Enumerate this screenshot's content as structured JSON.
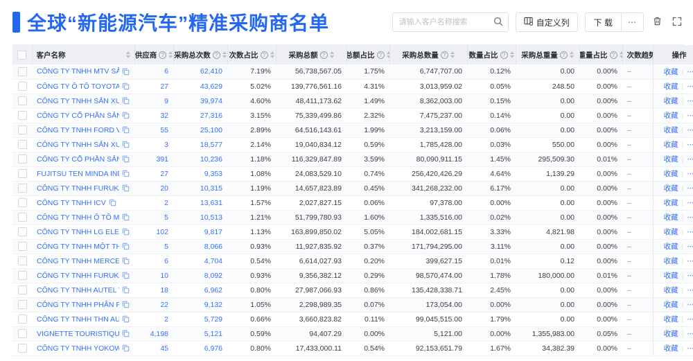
{
  "page": {
    "title": "全球“新能源汽车”精准采购商名单"
  },
  "toolbar": {
    "search_placeholder": "请输入客户名称搜索",
    "search_icon": "search-icon",
    "customize_columns_label": "自定义列",
    "customize_columns_icon": "columns-settings-icon",
    "download_label": "下 载",
    "more_label": "⋯",
    "trash_icon": "trash-icon",
    "fullscreen_icon": "fullscreen-icon"
  },
  "icons": {
    "info": "?",
    "more": "⋯",
    "copy": "copy-icon"
  },
  "table": {
    "columns": [
      {
        "key": "name",
        "label": "客户名称",
        "info": false,
        "sortable": true
      },
      {
        "key": "suppliers",
        "label": "供应商",
        "info": true,
        "sortable": true
      },
      {
        "key": "purchase_count",
        "label": "采购总次数",
        "info": true,
        "sortable": true
      },
      {
        "key": "count_pct",
        "label": "次数占比",
        "info": true,
        "sortable": true
      },
      {
        "key": "total_amount",
        "label": "采购总额",
        "info": true,
        "sortable": true
      },
      {
        "key": "amount_pct",
        "label": "总额占比",
        "info": true,
        "sortable": true
      },
      {
        "key": "total_qty",
        "label": "采购总数量",
        "info": true,
        "sortable": true
      },
      {
        "key": "qty_pct",
        "label": "数量占比",
        "info": true,
        "sortable": true
      },
      {
        "key": "total_weight",
        "label": "采购总重量",
        "info": true,
        "sortable": true
      },
      {
        "key": "weight_pct",
        "label": "重量占比",
        "info": true,
        "sortable": true
      },
      {
        "key": "trend",
        "label": "次数趋势",
        "info": false,
        "sortable": false
      },
      {
        "key": "action",
        "label": "操作",
        "info": false,
        "sortable": false
      }
    ],
    "row_actions": {
      "favorite_label": "收藏",
      "more_label": "⋯"
    },
    "rows": [
      {
        "name": "CÔNG TY TNHH MTV SẢN XUẤ...",
        "suppliers": "6",
        "purchase_count": "62,410",
        "count_pct": "7.19%",
        "total_amount": "56,738,567.05",
        "amount_pct": "1.75%",
        "total_qty": "6,747,707.00",
        "qty_pct": "0.12%",
        "total_weight": "0.00",
        "weight_pct": "0.00%",
        "trend": "–"
      },
      {
        "name": "CÔNG TY Ô TÔ TOYOTA VIỆT ...",
        "suppliers": "27",
        "purchase_count": "43,629",
        "count_pct": "5.02%",
        "total_amount": "139,776,561.16",
        "amount_pct": "4.31%",
        "total_qty": "3,013,959.02",
        "qty_pct": "0.05%",
        "total_weight": "248.50",
        "weight_pct": "0.00%",
        "trend": "–"
      },
      {
        "name": "CÔNG TY TNHH SẢN XUẤT VÀ ...",
        "suppliers": "9",
        "purchase_count": "39,974",
        "count_pct": "4.60%",
        "total_amount": "48,411,173.62",
        "amount_pct": "1.49%",
        "total_qty": "8,362,003.00",
        "qty_pct": "0.15%",
        "total_weight": "0.00",
        "weight_pct": "0.00%",
        "trend": "–"
      },
      {
        "name": "CÔNG TY CỔ PHẦN SẢN XUẤT...",
        "suppliers": "32",
        "purchase_count": "27,316",
        "count_pct": "3.15%",
        "total_amount": "75,339,499.86",
        "amount_pct": "2.32%",
        "total_qty": "7,475,237.00",
        "qty_pct": "0.14%",
        "total_weight": "0.00",
        "weight_pct": "0.00%",
        "trend": "–"
      },
      {
        "name": "CÔNG TY TNHH FORD VIỆT NAM",
        "suppliers": "55",
        "purchase_count": "25,100",
        "count_pct": "2.89%",
        "total_amount": "64,516,143.61",
        "amount_pct": "1.99%",
        "total_qty": "3,213,159.00",
        "qty_pct": "0.06%",
        "total_weight": "0.00",
        "weight_pct": "0.00%",
        "trend": "–"
      },
      {
        "name": "CÔNG TY TNHH SẢN XUẤT VÀ ...",
        "suppliers": "3",
        "purchase_count": "18,577",
        "count_pct": "2.14%",
        "total_amount": "19,040,834.12",
        "amount_pct": "0.59%",
        "total_qty": "1,785,428.00",
        "qty_pct": "0.03%",
        "total_weight": "550.00",
        "weight_pct": "0.00%",
        "trend": "–"
      },
      {
        "name": "CÔNG TY CỔ PHẦN SẢN XUẤT...",
        "suppliers": "391",
        "purchase_count": "10,236",
        "count_pct": "1.18%",
        "total_amount": "116,329,847.89",
        "amount_pct": "3.59%",
        "total_qty": "80,090,911.15",
        "qty_pct": "1.45%",
        "total_weight": "295,509.30",
        "weight_pct": "0.01%",
        "trend": "–"
      },
      {
        "name": "FUJITSU TEN MINDA INDIA PVT...",
        "suppliers": "27",
        "purchase_count": "9,353",
        "count_pct": "1.08%",
        "total_amount": "24,083,529.10",
        "amount_pct": "0.74%",
        "total_qty": "256,420,426.29",
        "qty_pct": "4.64%",
        "total_weight": "1,139.29",
        "weight_pct": "0.00%",
        "trend": "–"
      },
      {
        "name": "CÔNG TY TNHH FURUKAWA A...",
        "suppliers": "20",
        "purchase_count": "10,315",
        "count_pct": "1.19%",
        "total_amount": "14,657,823.89",
        "amount_pct": "0.45%",
        "total_qty": "341,268,232.00",
        "qty_pct": "6.17%",
        "total_weight": "0.00",
        "weight_pct": "0.00%",
        "trend": "–"
      },
      {
        "name": "CÔNG TY TNHH ICV",
        "suppliers": "2",
        "purchase_count": "13,631",
        "count_pct": "1.57%",
        "total_amount": "2,027,827.15",
        "amount_pct": "0.06%",
        "total_qty": "97,378.00",
        "qty_pct": "0.00%",
        "total_weight": "0.00",
        "weight_pct": "0.00%",
        "trend": "–"
      },
      {
        "name": "CÔNG TY TNHH Ô TÔ MITSUBI...",
        "suppliers": "5",
        "purchase_count": "10,513",
        "count_pct": "1.21%",
        "total_amount": "51,799,780.93",
        "amount_pct": "1.60%",
        "total_qty": "1,335,516.00",
        "qty_pct": "0.02%",
        "total_weight": "0.00",
        "weight_pct": "0.00%",
        "trend": "–"
      },
      {
        "name": "CÔNG TY TNHH LG ELECTRON...",
        "suppliers": "102",
        "purchase_count": "9,817",
        "count_pct": "1.13%",
        "total_amount": "163,899,850.02",
        "amount_pct": "5.05%",
        "total_qty": "184,002,681.15",
        "qty_pct": "3.33%",
        "total_weight": "4,821.98",
        "weight_pct": "0.00%",
        "trend": "–"
      },
      {
        "name": "CÔNG TY TNHH MỘT THÀNH V...",
        "suppliers": "5",
        "purchase_count": "8,066",
        "count_pct": "0.93%",
        "total_amount": "11,927,835.92",
        "amount_pct": "0.37%",
        "total_qty": "171,794,295.00",
        "qty_pct": "3.11%",
        "total_weight": "0.00",
        "weight_pct": "0.00%",
        "trend": "–"
      },
      {
        "name": "CÔNG TY TNHH MERCEDES-B...",
        "suppliers": "6",
        "purchase_count": "4,704",
        "count_pct": "0.54%",
        "total_amount": "6,614,027.93",
        "amount_pct": "0.20%",
        "total_qty": "399,627.15",
        "qty_pct": "0.01%",
        "total_weight": "0.12",
        "weight_pct": "0.00%",
        "trend": "–"
      },
      {
        "name": "CÔNG TY TNHH FURUKAWA A...",
        "suppliers": "10",
        "purchase_count": "8,092",
        "count_pct": "0.93%",
        "total_amount": "9,356,382.12",
        "amount_pct": "0.29%",
        "total_qty": "98,570,474.00",
        "qty_pct": "1.78%",
        "total_weight": "180,000.00",
        "weight_pct": "0.01%",
        "trend": "–"
      },
      {
        "name": "CÔNG TY TNHH AUTEL VIỆT N...",
        "suppliers": "18",
        "purchase_count": "6,962",
        "count_pct": "0.80%",
        "total_amount": "27,987,066.93",
        "amount_pct": "0.86%",
        "total_qty": "135,428,338.71",
        "qty_pct": "2.45%",
        "total_weight": "0.00",
        "weight_pct": "0.00%",
        "trend": "–"
      },
      {
        "name": "CÔNG TY TNHH PHÂN PHỐI T...",
        "suppliers": "22",
        "purchase_count": "9,132",
        "count_pct": "1.05%",
        "total_amount": "2,298,989.35",
        "amount_pct": "0.07%",
        "total_qty": "173,054.00",
        "qty_pct": "0.00%",
        "total_weight": "0.00",
        "weight_pct": "0.00%",
        "trend": "–"
      },
      {
        "name": "CÔNG TY TNHH THN AUTOPAR...",
        "suppliers": "2",
        "purchase_count": "5,729",
        "count_pct": "0.66%",
        "total_amount": "3,660,823.82",
        "amount_pct": "0.11%",
        "total_qty": "99,045,515.00",
        "qty_pct": "1.79%",
        "total_weight": "0.00",
        "weight_pct": "0.00%",
        "trend": "–"
      },
      {
        "name": "VIGNETTE TOURISTIQUE G UNI...",
        "suppliers": "4,198",
        "purchase_count": "5,121",
        "count_pct": "0.59%",
        "total_amount": "94,407.29",
        "amount_pct": "0.00%",
        "total_qty": "5,121.00",
        "qty_pct": "0.00%",
        "total_weight": "1,355,983.00",
        "weight_pct": "0.05%",
        "trend": "–"
      },
      {
        "name": "CÔNG TY TNHH YOKOWO VIỆT...",
        "suppliers": "45",
        "purchase_count": "6,976",
        "count_pct": "0.80%",
        "total_amount": "17,433,000.11",
        "amount_pct": "0.54%",
        "total_qty": "92,153,651.79",
        "qty_pct": "1.67%",
        "total_weight": "34,382.39",
        "weight_pct": "0.00%",
        "trend": "–"
      }
    ]
  },
  "colors": {
    "accent": "#2468f2",
    "link": "#3370ff",
    "header_bg": "#eef0f6"
  }
}
